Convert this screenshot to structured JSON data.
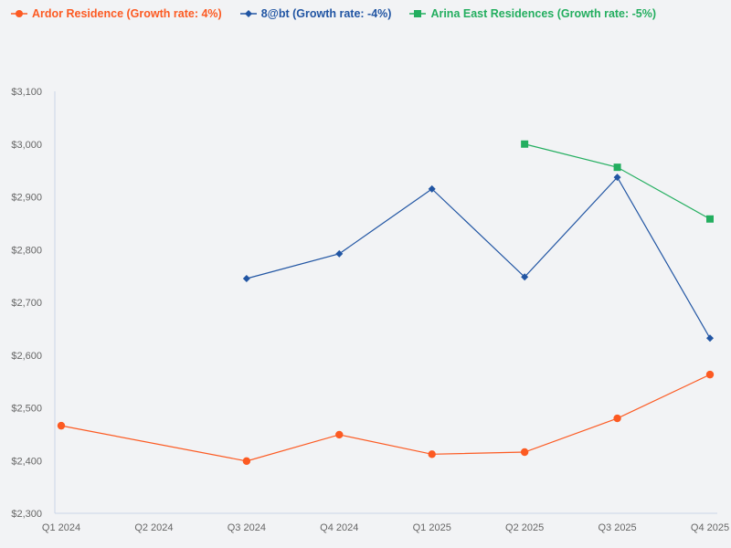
{
  "legend": [
    {
      "label": "Ardor Residence (Growth rate: 4%)",
      "color": "#fc5a22",
      "marker": "circle"
    },
    {
      "label": "8@bt (Growth rate: -4%)",
      "color": "#2155a3",
      "marker": "diamond"
    },
    {
      "label": "Arina East Residences (Growth rate: -5%)",
      "color": "#23ae5f",
      "marker": "square"
    }
  ],
  "chart_data": {
    "type": "line",
    "title": "",
    "xlabel": "",
    "ylabel": "",
    "categories": [
      "Q1 2024",
      "Q2 2024",
      "Q3 2024",
      "Q4 2024",
      "Q1 2025",
      "Q2 2025",
      "Q3 2025",
      "Q4 2025"
    ],
    "ylim": [
      2300,
      3100
    ],
    "yticks": [
      2300,
      2400,
      2500,
      2600,
      2700,
      2800,
      2900,
      3000,
      3100
    ],
    "ytick_labels": [
      "$2,300",
      "$2,400",
      "$2,500",
      "$2,600",
      "$2,700",
      "$2,800",
      "$2,900",
      "$3,000",
      "$3,100"
    ],
    "grid": false,
    "legend_position": "top-left",
    "series": [
      {
        "name": "Ardor Residence (Growth rate: 4%)",
        "color": "#fc5a22",
        "marker": "circle",
        "values": [
          2466,
          null,
          2399,
          2449,
          2412,
          2416,
          2480,
          2563
        ]
      },
      {
        "name": "8@bt (Growth rate: -4%)",
        "color": "#2155a3",
        "marker": "diamond",
        "values": [
          null,
          null,
          2745,
          2792,
          2915,
          2748,
          2937,
          2632
        ]
      },
      {
        "name": "Arina East Residences (Growth rate: -5%)",
        "color": "#23ae5f",
        "marker": "square",
        "values": [
          null,
          null,
          null,
          null,
          null,
          3000,
          2956,
          2858
        ]
      }
    ]
  }
}
